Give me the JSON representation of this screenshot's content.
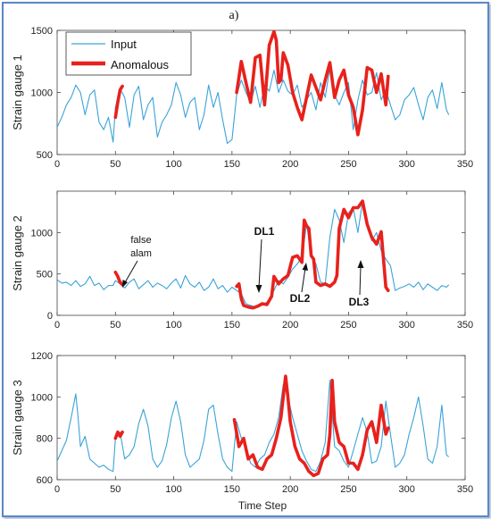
{
  "figure_title": "a)",
  "colors": {
    "input": "#3aa3d8",
    "anomalous": "#e8211c",
    "frame": "#5b86c6"
  },
  "legend": {
    "input_label": "Input",
    "anomalous_label": "Anomalous"
  },
  "x_axis_label": "Time Step",
  "annotations": {
    "false_alarm": [
      "false",
      "alam"
    ],
    "dl1": "DL1",
    "dl2": "DL2",
    "dl3": "DL3"
  },
  "chart_data": [
    {
      "type": "line",
      "ylabel": "Strain gauge 1",
      "xlabel": "",
      "xlim": [
        0,
        350
      ],
      "ylim": [
        500,
        1500
      ],
      "xticks": [
        0,
        50,
        100,
        150,
        200,
        250,
        300,
        350
      ],
      "yticks": [
        500,
        1000,
        1500
      ],
      "series": [
        {
          "name": "Input",
          "x": [
            0,
            4,
            8,
            12,
            16,
            20,
            24,
            28,
            32,
            36,
            40,
            44,
            48,
            50,
            54,
            58,
            62,
            66,
            70,
            74,
            78,
            82,
            86,
            90,
            94,
            98,
            102,
            106,
            110,
            114,
            118,
            122,
            126,
            130,
            134,
            138,
            142,
            146,
            150,
            154,
            158,
            162,
            166,
            170,
            174,
            178,
            182,
            186,
            190,
            194,
            198,
            202,
            206,
            210,
            214,
            218,
            222,
            226,
            230,
            234,
            238,
            242,
            246,
            250,
            254,
            258,
            262,
            266,
            270,
            274,
            278,
            282,
            286,
            290,
            294,
            298,
            302,
            306,
            310,
            314,
            318,
            322,
            326,
            330,
            334,
            336
          ],
          "values": [
            720,
            800,
            900,
            960,
            1060,
            1000,
            820,
            980,
            1020,
            760,
            700,
            800,
            600,
            880,
            1030,
            960,
            720,
            980,
            1050,
            780,
            900,
            960,
            640,
            760,
            820,
            900,
            1080,
            980,
            800,
            920,
            960,
            700,
            820,
            1060,
            880,
            1000,
            780,
            590,
            620,
            980,
            1100,
            1000,
            920,
            1050,
            880,
            1060,
            1010,
            1180,
            1000,
            1100,
            1010,
            980,
            1060,
            880,
            940,
            1000,
            860,
            1080,
            960,
            1200,
            980,
            900,
            1000,
            1080,
            700,
            940,
            1100,
            980,
            1000,
            1160,
            940,
            1020,
            900,
            780,
            820,
            940,
            980,
            1040,
            900,
            780,
            960,
            1020,
            870,
            1080,
            860,
            820
          ]
        },
        {
          "name": "Anomalous",
          "segments": [
            {
              "x": [
                50,
                52,
                54,
                56
              ],
              "values": [
                800,
                920,
                1020,
                1050
              ]
            },
            {
              "x": [
                154,
                158,
                162,
                166,
                170,
                174,
                178,
                182,
                186,
                188,
                190,
                192,
                194,
                198,
                202,
                206,
                210,
                214,
                218,
                222,
                226,
                230,
                234,
                238,
                242,
                246,
                250,
                254,
                258,
                262,
                266,
                270,
                274,
                278,
                282,
                284
              ],
              "values": [
                1000,
                1250,
                1080,
                920,
                1280,
                1300,
                900,
                1380,
                1490,
                1420,
                1080,
                1100,
                1320,
                1220,
                1000,
                880,
                780,
                960,
                1140,
                1040,
                940,
                1100,
                1240,
                960,
                1100,
                1180,
                980,
                880,
                660,
                860,
                1200,
                1180,
                1000,
                1150,
                900,
                1130
              ]
            }
          ]
        }
      ]
    },
    {
      "type": "line",
      "ylabel": "Strain gauge 2",
      "xlabel": "",
      "xlim": [
        0,
        350
      ],
      "ylim": [
        0,
        1500
      ],
      "xticks": [
        0,
        50,
        100,
        150,
        200,
        250,
        300,
        350
      ],
      "yticks": [
        0,
        500,
        1000
      ],
      "series": [
        {
          "name": "Input",
          "x": [
            0,
            4,
            8,
            12,
            16,
            20,
            24,
            28,
            32,
            36,
            40,
            44,
            48,
            50,
            54,
            58,
            62,
            66,
            70,
            74,
            78,
            82,
            86,
            90,
            94,
            98,
            102,
            106,
            110,
            114,
            118,
            122,
            126,
            130,
            134,
            138,
            142,
            146,
            150,
            154,
            158,
            162,
            166,
            170,
            174,
            178,
            182,
            186,
            190,
            194,
            198,
            202,
            206,
            210,
            214,
            218,
            222,
            226,
            230,
            234,
            238,
            242,
            246,
            250,
            254,
            258,
            262,
            266,
            270,
            274,
            278,
            282,
            286,
            290,
            294,
            298,
            302,
            306,
            310,
            314,
            318,
            322,
            326,
            330,
            334,
            336
          ],
          "values": [
            430,
            390,
            400,
            360,
            420,
            350,
            380,
            470,
            360,
            390,
            310,
            360,
            360,
            420,
            380,
            330,
            400,
            440,
            320,
            370,
            420,
            340,
            390,
            360,
            320,
            390,
            440,
            330,
            480,
            380,
            340,
            400,
            300,
            340,
            440,
            320,
            360,
            280,
            340,
            300,
            260,
            140,
            120,
            100,
            110,
            140,
            180,
            300,
            420,
            380,
            460,
            560,
            620,
            700,
            1100,
            740,
            620,
            400,
            380,
            940,
            1280,
            1150,
            880,
            1240,
            1300,
            1000,
            1380,
            1100,
            900,
            1000,
            780,
            680,
            600,
            300,
            330,
            350,
            380,
            340,
            400,
            310,
            380,
            340,
            300,
            360,
            340,
            370
          ]
        },
        {
          "name": "Anomalous",
          "segments": [
            {
              "x": [
                50,
                52,
                54,
                56
              ],
              "values": [
                520,
                470,
                400,
                370
              ]
            },
            {
              "x": [
                154,
                156,
                158,
                160,
                164,
                168,
                172,
                176,
                180,
                184,
                186,
                190,
                194,
                198,
                202,
                206,
                210,
                212,
                214,
                216,
                218,
                220,
                222,
                226,
                230,
                234,
                238,
                240,
                242,
                246,
                250,
                254,
                258,
                262,
                266,
                270,
                274,
                278,
                282,
                284
              ],
              "values": [
                350,
                380,
                200,
                120,
                100,
                90,
                110,
                140,
                130,
                230,
                470,
                380,
                440,
                480,
                700,
                720,
                640,
                1150,
                1080,
                1050,
                720,
                680,
                400,
                360,
                380,
                350,
                400,
                480,
                1050,
                1280,
                1180,
                1300,
                1300,
                1380,
                1100,
                940,
                860,
                1010,
                340,
                300
              ]
            }
          ]
        }
      ]
    },
    {
      "type": "line",
      "ylabel": "Strain gauge 3",
      "xlabel": "Time Step",
      "xlim": [
        0,
        350
      ],
      "ylim": [
        600,
        1200
      ],
      "xticks": [
        0,
        50,
        100,
        150,
        200,
        250,
        300,
        350
      ],
      "yticks": [
        600,
        800,
        1000,
        1200
      ],
      "series": [
        {
          "name": "Input",
          "x": [
            0,
            4,
            8,
            12,
            16,
            18,
            20,
            24,
            28,
            32,
            36,
            40,
            44,
            48,
            50,
            54,
            58,
            62,
            66,
            70,
            74,
            78,
            82,
            86,
            90,
            94,
            98,
            102,
            106,
            110,
            114,
            118,
            122,
            126,
            130,
            134,
            138,
            142,
            146,
            150,
            154,
            158,
            162,
            166,
            170,
            174,
            178,
            182,
            186,
            190,
            194,
            198,
            202,
            206,
            210,
            214,
            218,
            222,
            226,
            230,
            234,
            238,
            242,
            246,
            250,
            254,
            258,
            262,
            266,
            270,
            274,
            278,
            282,
            286,
            290,
            294,
            298,
            302,
            306,
            310,
            314,
            318,
            322,
            326,
            330,
            334,
            336
          ],
          "values": [
            690,
            740,
            790,
            900,
            1015,
            900,
            760,
            810,
            700,
            680,
            660,
            670,
            650,
            640,
            800,
            830,
            700,
            720,
            760,
            870,
            940,
            860,
            700,
            660,
            690,
            770,
            900,
            980,
            880,
            720,
            660,
            680,
            700,
            790,
            940,
            960,
            820,
            700,
            660,
            640,
            880,
            800,
            760,
            680,
            660,
            700,
            720,
            780,
            820,
            900,
            1060,
            1000,
            900,
            820,
            740,
            690,
            650,
            640,
            690,
            780,
            1080,
            760,
            740,
            690,
            660,
            740,
            820,
            900,
            830,
            680,
            690,
            760,
            980,
            820,
            660,
            680,
            720,
            820,
            900,
            1000,
            860,
            700,
            680,
            760,
            960,
            720,
            710
          ]
        },
        {
          "name": "Anomalous",
          "segments": [
            {
              "x": [
                50,
                52,
                54,
                56
              ],
              "values": [
                800,
                830,
                810,
                830
              ]
            },
            {
              "x": [
                152,
                156,
                160,
                164,
                168,
                172,
                176,
                180,
                184,
                188,
                192,
                194,
                196,
                198,
                200,
                204,
                208,
                212,
                216,
                220,
                224,
                228,
                232,
                234,
                236,
                238,
                242,
                246,
                250,
                254,
                258,
                262,
                266,
                270,
                274,
                278,
                282,
                284
              ],
              "values": [
                890,
                760,
                800,
                700,
                720,
                660,
                650,
                700,
                720,
                800,
                900,
                1000,
                1100,
                1000,
                880,
                760,
                700,
                680,
                640,
                620,
                630,
                700,
                720,
                820,
                1080,
                880,
                780,
                760,
                680,
                680,
                650,
                720,
                840,
                880,
                780,
                960,
                820,
                850
              ]
            }
          ]
        }
      ]
    }
  ]
}
